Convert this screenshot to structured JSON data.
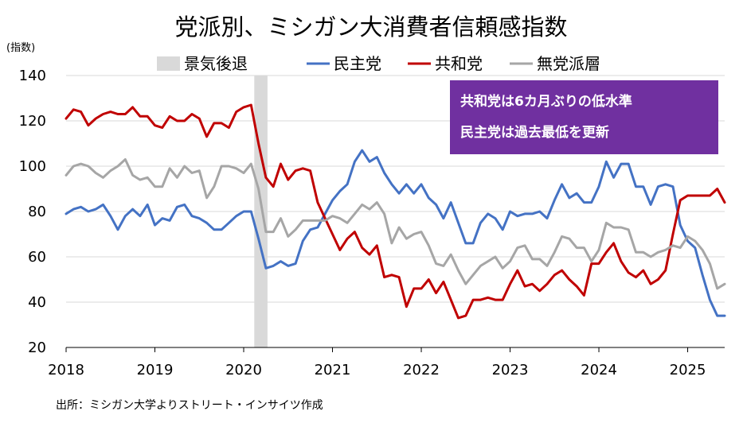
{
  "chart_data": {
    "type": "line",
    "title": "党派別、ミシガン大消費者信頼感指数",
    "ylabel": "(指数)",
    "source": "出所：ミシガン大学よりストリート・インサイツ作成",
    "ylim": [
      20,
      140
    ],
    "yticks": [
      20,
      40,
      60,
      80,
      100,
      120,
      140
    ],
    "xlim": [
      "2018-01",
      "2025-06"
    ],
    "xticks": [
      "2018",
      "2019",
      "2020",
      "2021",
      "2022",
      "2023",
      "2024",
      "2025"
    ],
    "grid": "horizontal",
    "legend_position": "top",
    "recession": {
      "name": "景気後退",
      "start": "2020-02",
      "end": "2020-04",
      "color": "#d9d9d9"
    },
    "annotations": [
      "共和党は6カ月ぶりの低水準",
      "民主党は過去最低を更新"
    ],
    "annotation_color": "#7030a0",
    "x": [
      "2018-01",
      "2018-02",
      "2018-03",
      "2018-04",
      "2018-05",
      "2018-06",
      "2018-07",
      "2018-08",
      "2018-09",
      "2018-10",
      "2018-11",
      "2018-12",
      "2019-01",
      "2019-02",
      "2019-03",
      "2019-04",
      "2019-05",
      "2019-06",
      "2019-07",
      "2019-08",
      "2019-09",
      "2019-10",
      "2019-11",
      "2019-12",
      "2020-01",
      "2020-02",
      "2020-03",
      "2020-04",
      "2020-05",
      "2020-06",
      "2020-07",
      "2020-08",
      "2020-09",
      "2020-10",
      "2020-11",
      "2020-12",
      "2021-01",
      "2021-02",
      "2021-03",
      "2021-04",
      "2021-05",
      "2021-06",
      "2021-07",
      "2021-08",
      "2021-09",
      "2021-10",
      "2021-11",
      "2021-12",
      "2022-01",
      "2022-02",
      "2022-03",
      "2022-04",
      "2022-05",
      "2022-06",
      "2022-07",
      "2022-08",
      "2022-09",
      "2022-10",
      "2022-11",
      "2022-12",
      "2023-01",
      "2023-02",
      "2023-03",
      "2023-04",
      "2023-05",
      "2023-06",
      "2023-07",
      "2023-08",
      "2023-09",
      "2023-10",
      "2023-11",
      "2023-12",
      "2024-01",
      "2024-02",
      "2024-03",
      "2024-04",
      "2024-05",
      "2024-06",
      "2024-07",
      "2024-08",
      "2024-09",
      "2024-10",
      "2024-11",
      "2024-12",
      "2025-01",
      "2025-02",
      "2025-03",
      "2025-04",
      "2025-05",
      "2025-06"
    ],
    "series": [
      {
        "name": "民主党",
        "color": "#4472c4",
        "values": [
          79,
          81,
          82,
          80,
          81,
          83,
          78,
          72,
          78,
          81,
          78,
          83,
          74,
          77,
          76,
          82,
          83,
          78,
          77,
          75,
          72,
          72,
          75,
          78,
          80,
          80,
          68,
          55,
          56,
          58,
          56,
          57,
          67,
          72,
          73,
          79,
          85,
          89,
          92,
          102,
          107,
          102,
          104,
          97,
          92,
          88,
          92,
          88,
          92,
          86,
          83,
          77,
          84,
          75,
          66,
          66,
          75,
          79,
          77,
          72,
          80,
          78,
          79,
          79,
          80,
          77,
          85,
          92,
          86,
          88,
          84,
          84,
          91,
          102,
          95,
          101,
          101,
          91,
          91,
          83,
          91,
          92,
          91,
          74,
          67,
          64,
          52,
          41,
          34,
          34
        ]
      },
      {
        "name": "共和党",
        "color": "#c00000",
        "values": [
          121,
          125,
          124,
          118,
          121,
          123,
          124,
          123,
          123,
          126,
          122,
          122,
          118,
          117,
          122,
          120,
          120,
          123,
          121,
          113,
          119,
          119,
          117,
          124,
          126,
          127,
          110,
          95,
          91,
          101,
          94,
          98,
          99,
          98,
          84,
          77,
          70,
          63,
          68,
          71,
          64,
          61,
          65,
          51,
          52,
          51,
          38,
          46,
          46,
          50,
          44,
          49,
          41,
          33,
          34,
          41,
          41,
          42,
          41,
          41,
          48,
          54,
          47,
          48,
          45,
          48,
          52,
          54,
          50,
          47,
          43,
          57,
          57,
          62,
          66,
          58,
          53,
          51,
          54,
          48,
          50,
          54,
          70,
          85,
          87,
          87,
          87,
          87,
          90,
          84
        ]
      },
      {
        "name": "無党派層",
        "color": "#a6a6a6",
        "values": [
          96,
          100,
          101,
          100,
          97,
          95,
          98,
          100,
          103,
          96,
          94,
          95,
          91,
          91,
          99,
          95,
          100,
          97,
          98,
          86,
          91,
          100,
          100,
          99,
          97,
          101,
          90,
          71,
          71,
          77,
          69,
          72,
          76,
          76,
          76,
          76,
          78,
          77,
          75,
          79,
          83,
          81,
          84,
          79,
          66,
          73,
          68,
          70,
          71,
          65,
          57,
          56,
          61,
          54,
          48,
          52,
          56,
          58,
          60,
          55,
          58,
          64,
          65,
          59,
          59,
          56,
          62,
          69,
          68,
          64,
          64,
          58,
          63,
          75,
          73,
          73,
          72,
          62,
          62,
          60,
          62,
          63,
          65,
          64,
          69,
          67,
          63,
          57,
          46,
          48
        ]
      }
    ]
  }
}
